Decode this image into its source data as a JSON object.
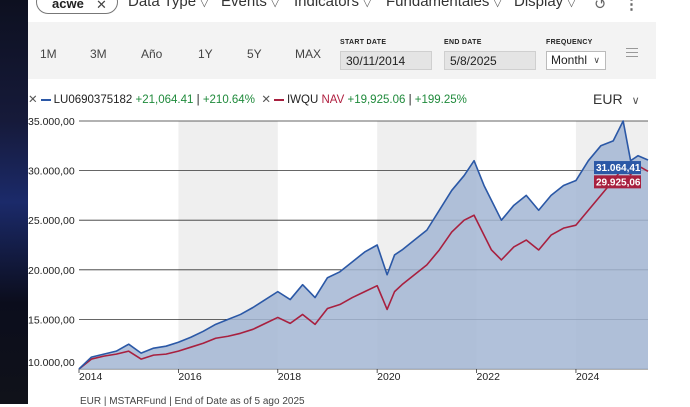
{
  "toolbar": {
    "search_value": "acwe",
    "menus": [
      "Data Type",
      "Events",
      "Indicators",
      "Fundamentales",
      "Display"
    ]
  },
  "controls": {
    "ranges": [
      "1M",
      "3M",
      "Año",
      "1Y",
      "5Y",
      "MAX"
    ],
    "start_date_label": "START DATE",
    "start_date": "30/11/2014",
    "end_date_label": "END DATE",
    "end_date": "5/8/2025",
    "frequency_label": "FREQUENCY",
    "frequency": "Monthl"
  },
  "legend": {
    "s1_name": "LU0690375182",
    "s1_change": "+21,064.41",
    "s1_pct": "+210.64%",
    "s2_name": "IWQU",
    "s2_nav": "NAV",
    "s2_change": "+19,925.06",
    "s2_pct": "+199.25%",
    "sep": "|"
  },
  "currency": "EUR",
  "footer": "EUR | MSTARFund | End of Date as of 5 ago 2025",
  "colors": {
    "series1": "#2b58a6",
    "series1_fill": "#a3b6d3",
    "series2": "#a8203f",
    "band": "#efefef"
  },
  "chart_data": {
    "type": "area",
    "title": "",
    "xlabel": "",
    "ylabel": "",
    "xlim": [
      2014.0,
      2025.45
    ],
    "ylim": [
      10000,
      35000
    ],
    "x_ticks": [
      "2014",
      "2016",
      "2018",
      "2020",
      "2022",
      "2024"
    ],
    "y_ticks": [
      "10.000,00",
      "15.000,00",
      "20.000,00",
      "25.000,00",
      "30.000,00",
      "35.000,00"
    ],
    "grid": true,
    "legend": "top-left",
    "end_labels": [
      "31.064,41",
      "29.925,06"
    ],
    "series": [
      {
        "name": "LU0690375182",
        "x": [
          2014.0,
          2014.25,
          2014.5,
          2014.75,
          2015.0,
          2015.25,
          2015.5,
          2015.75,
          2016.0,
          2016.25,
          2016.5,
          2016.75,
          2017.0,
          2017.25,
          2017.5,
          2017.75,
          2018.0,
          2018.25,
          2018.5,
          2018.75,
          2019.0,
          2019.25,
          2019.5,
          2019.75,
          2020.0,
          2020.2,
          2020.35,
          2020.5,
          2020.75,
          2021.0,
          2021.25,
          2021.5,
          2021.75,
          2021.95,
          2022.15,
          2022.3,
          2022.5,
          2022.75,
          2023.0,
          2023.25,
          2023.5,
          2023.75,
          2024.0,
          2024.25,
          2024.5,
          2024.75,
          2024.95,
          2025.1,
          2025.25,
          2025.45
        ],
        "values": [
          10000,
          11200,
          11500,
          11800,
          12500,
          11600,
          12100,
          12300,
          12700,
          13200,
          13800,
          14500,
          15000,
          15500,
          16200,
          17000,
          17800,
          17000,
          18500,
          17200,
          19200,
          19800,
          20800,
          21800,
          22500,
          19500,
          21500,
          22000,
          23000,
          24000,
          26000,
          28000,
          29500,
          31000,
          28500,
          27000,
          25000,
          26500,
          27500,
          26000,
          27500,
          28500,
          29000,
          31000,
          32500,
          33000,
          35000,
          31000,
          31500,
          31064
        ]
      },
      {
        "name": "IWQU NAV",
        "x": [
          2014.0,
          2014.25,
          2014.5,
          2014.75,
          2015.0,
          2015.25,
          2015.5,
          2015.75,
          2016.0,
          2016.25,
          2016.5,
          2016.75,
          2017.0,
          2017.25,
          2017.5,
          2017.75,
          2018.0,
          2018.25,
          2018.5,
          2018.75,
          2019.0,
          2019.25,
          2019.5,
          2019.75,
          2020.0,
          2020.2,
          2020.35,
          2020.5,
          2020.75,
          2021.0,
          2021.25,
          2021.5,
          2021.75,
          2021.95,
          2022.15,
          2022.3,
          2022.5,
          2022.75,
          2023.0,
          2023.25,
          2023.5,
          2023.75,
          2024.0,
          2024.25,
          2024.5,
          2024.75,
          2024.95,
          2025.1,
          2025.25,
          2025.45
        ],
        "values": [
          10000,
          11000,
          11300,
          11500,
          11800,
          11000,
          11400,
          11500,
          11800,
          12200,
          12600,
          13100,
          13300,
          13600,
          14000,
          14600,
          15200,
          14600,
          15500,
          14500,
          16100,
          16500,
          17200,
          17800,
          18400,
          16000,
          17800,
          18500,
          19500,
          20500,
          22000,
          23800,
          25000,
          25500,
          23500,
          22000,
          21000,
          22300,
          23000,
          22000,
          23500,
          24200,
          24500,
          26000,
          27500,
          29000,
          30300,
          29600,
          30500,
          29925
        ]
      }
    ]
  }
}
